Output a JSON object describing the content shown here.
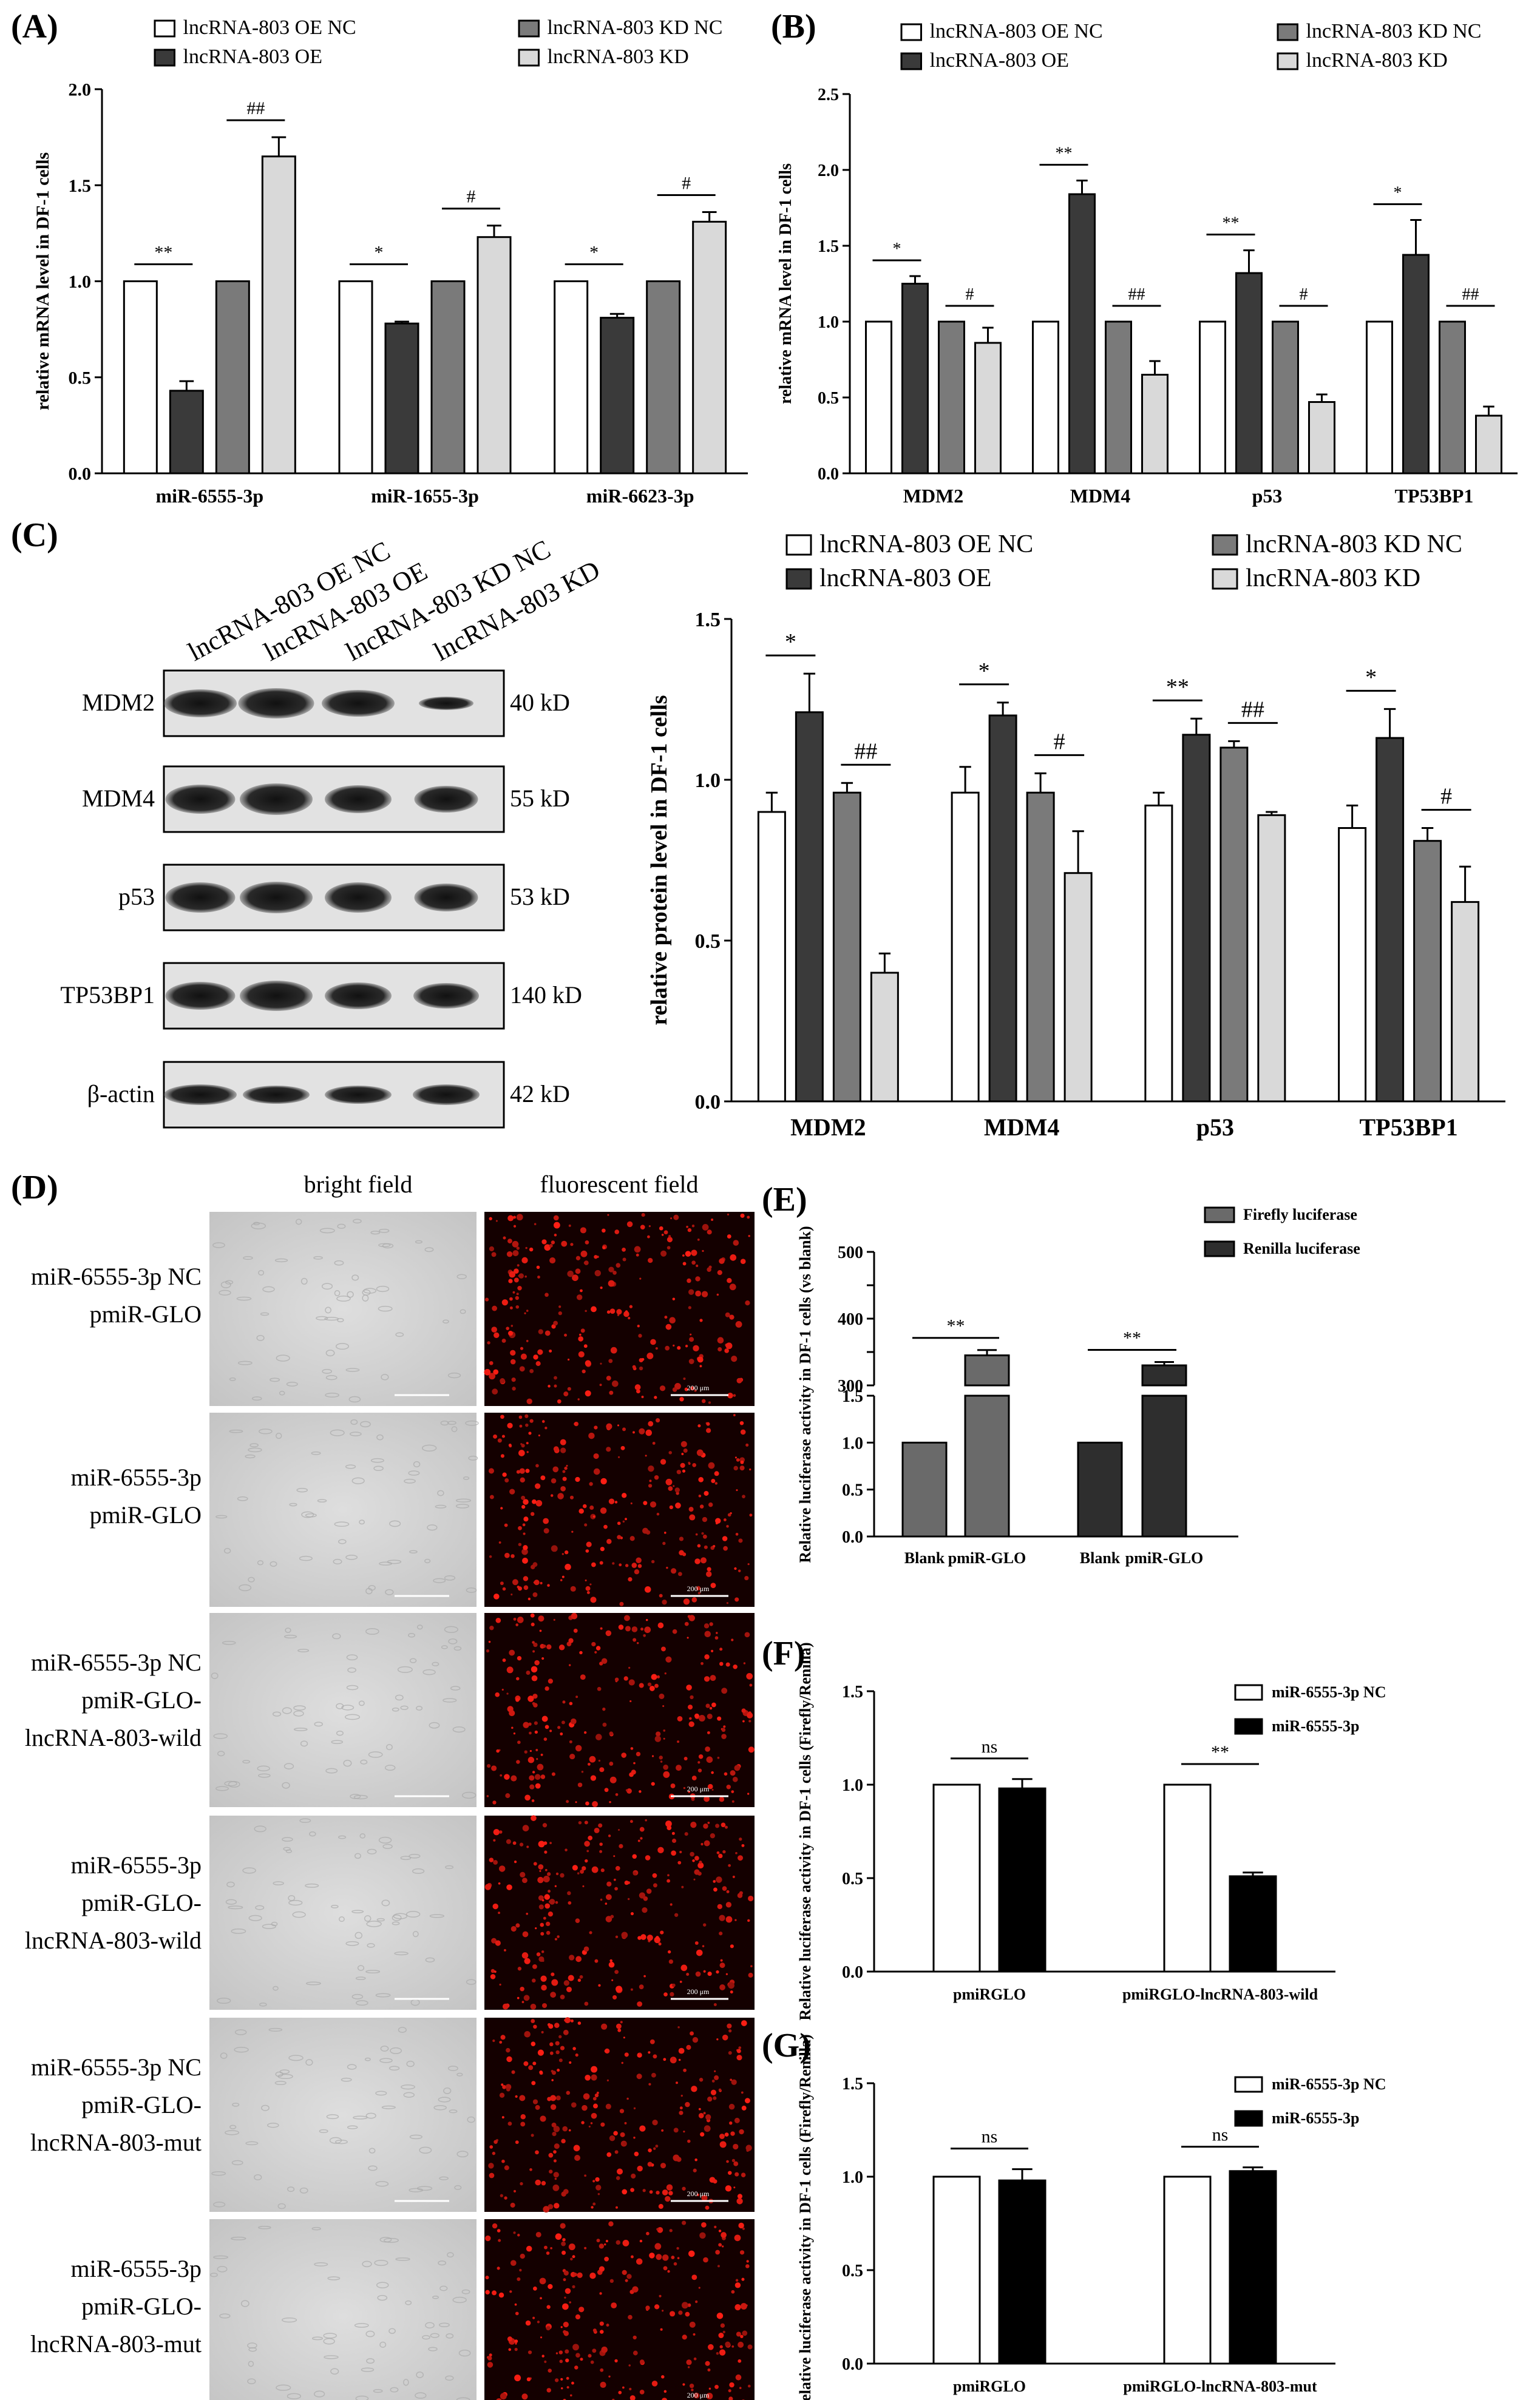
{
  "colors": {
    "white": "#ffffff",
    "oe": "#3a3a3a",
    "kdnc": "#7a7a7a",
    "kd": "#d9d9d9",
    "renilla": "#2e2e2e",
    "firefly": "#6a6a6a",
    "black": "#000000"
  },
  "panels": [
    "(A)",
    "(B)",
    "(C)",
    "(D)",
    "(E)",
    "(F)",
    "(G)"
  ],
  "legend4": [
    "lncRNA-803 OE NC",
    "lncRNA-803 OE",
    "lncRNA-803 KD NC",
    "lncRNA-803 KD"
  ],
  "chart_data": [
    {
      "id": "A",
      "type": "bar",
      "ylabel": "relative mRNA level in DF-1 cells",
      "ylim": [
        0,
        2.0
      ],
      "yticks": [
        "0.0",
        "0.5",
        "1.0",
        "1.5",
        "2.0"
      ],
      "categories": [
        "miR-6555-3p",
        "miR-1655-3p",
        "miR-6623-3p"
      ],
      "series": [
        {
          "name": "lncRNA-803 OE NC",
          "values": [
            1.0,
            1.0,
            1.0
          ],
          "err": [
            0,
            0,
            0
          ]
        },
        {
          "name": "lncRNA-803 OE",
          "values": [
            0.43,
            0.78,
            0.81
          ],
          "err": [
            0.05,
            0.01,
            0.02
          ]
        },
        {
          "name": "lncRNA-803 KD NC",
          "values": [
            1.0,
            1.0,
            1.0
          ],
          "err": [
            0,
            0,
            0
          ]
        },
        {
          "name": "lncRNA-803 KD",
          "values": [
            1.65,
            1.23,
            1.31
          ],
          "err": [
            0.1,
            0.06,
            0.05
          ]
        }
      ],
      "sig": [
        [
          "**",
          "##"
        ],
        [
          "*",
          "#"
        ],
        [
          "*",
          "#"
        ]
      ]
    },
    {
      "id": "B",
      "type": "bar",
      "ylabel": "relative mRNA level in DF-1 cells",
      "ylim": [
        0,
        2.5
      ],
      "yticks": [
        "0.0",
        "0.5",
        "1.0",
        "1.5",
        "2.0",
        "2.5"
      ],
      "categories": [
        "MDM2",
        "MDM4",
        "p53",
        "TP53BP1"
      ],
      "series": [
        {
          "name": "lncRNA-803 OE NC",
          "values": [
            1.0,
            1.0,
            1.0,
            1.0
          ],
          "err": [
            0,
            0,
            0,
            0
          ]
        },
        {
          "name": "lncRNA-803 OE",
          "values": [
            1.25,
            1.84,
            1.32,
            1.44
          ],
          "err": [
            0.05,
            0.09,
            0.15,
            0.23
          ]
        },
        {
          "name": "lncRNA-803 KD NC",
          "values": [
            1.0,
            1.0,
            1.0,
            1.0
          ],
          "err": [
            0,
            0,
            0,
            0
          ]
        },
        {
          "name": "lncRNA-803 KD",
          "values": [
            0.86,
            0.65,
            0.47,
            0.38
          ],
          "err": [
            0.1,
            0.09,
            0.05,
            0.06
          ]
        }
      ],
      "sig": [
        [
          "*",
          "#"
        ],
        [
          "**",
          "##"
        ],
        [
          "**",
          "#"
        ],
        [
          "*",
          "##"
        ]
      ]
    },
    {
      "id": "C",
      "type": "bar",
      "ylabel": "relative protein level in DF-1 cells",
      "ylim": [
        0,
        1.5
      ],
      "yticks": [
        "0.0",
        "0.5",
        "1.0",
        "1.5"
      ],
      "categories": [
        "MDM2",
        "MDM4",
        "p53",
        "TP53BP1"
      ],
      "series": [
        {
          "name": "lncRNA-803 OE NC",
          "values": [
            0.9,
            0.96,
            0.92,
            0.85
          ],
          "err": [
            0.06,
            0.08,
            0.04,
            0.07
          ]
        },
        {
          "name": "lncRNA-803 OE",
          "values": [
            1.21,
            1.2,
            1.14,
            1.13
          ],
          "err": [
            0.12,
            0.04,
            0.05,
            0.09
          ]
        },
        {
          "name": "lncRNA-803 KD NC",
          "values": [
            0.96,
            0.96,
            1.1,
            0.81
          ],
          "err": [
            0.03,
            0.06,
            0.02,
            0.04
          ]
        },
        {
          "name": "lncRNA-803 KD",
          "values": [
            0.4,
            0.71,
            0.89,
            0.62
          ],
          "err": [
            0.06,
            0.13,
            0.01,
            0.11
          ]
        }
      ],
      "sig": [
        [
          "*",
          "##"
        ],
        [
          "*",
          "#"
        ],
        [
          "**",
          "##"
        ],
        [
          "*",
          "#"
        ]
      ]
    },
    {
      "id": "E",
      "type": "bar",
      "ylabel": "Relative luciferase activity in DF-1 cells (vs blank)",
      "categories": [
        "Blank",
        "pmiR-GLO",
        "Blank",
        "pmiR-GLO"
      ],
      "series": [
        {
          "name": "Firefly luciferase"
        },
        {
          "name": "Renilla luciferase"
        }
      ],
      "values": [
        1.0,
        345,
        1.0,
        330
      ],
      "err": [
        0,
        8,
        0,
        5
      ],
      "upper_ticks": [
        "300",
        "400",
        "500"
      ],
      "lower_ticks": [
        "0.0",
        "0.5",
        "1.0",
        "1.5"
      ],
      "sig": [
        "**",
        "**"
      ]
    },
    {
      "id": "F",
      "type": "bar",
      "ylabel": "Relative luciferase activity in DF-1 cells (Firefly/Renilla)",
      "ylim": [
        0,
        1.5
      ],
      "yticks": [
        "0.0",
        "0.5",
        "1.0",
        "1.5"
      ],
      "categories": [
        "pmiRGLO",
        "pmiRGLO-lncRNA-803-wild"
      ],
      "series": [
        {
          "name": "miR-6555-3p NC",
          "values": [
            1.0,
            1.0
          ],
          "err": [
            0,
            0
          ]
        },
        {
          "name": "miR-6555-3p",
          "values": [
            0.98,
            0.51
          ],
          "err": [
            0.05,
            0.02
          ]
        }
      ],
      "sig": [
        "ns",
        "**"
      ]
    },
    {
      "id": "G",
      "type": "bar",
      "ylabel": "Relative luciferase activity in DF-1 cells (Firefly/Renilla)",
      "ylim": [
        0,
        1.5
      ],
      "yticks": [
        "0.0",
        "0.5",
        "1.0",
        "1.5"
      ],
      "categories": [
        "pmiRGLO",
        "pmiRGLO-lncRNA-803-mut"
      ],
      "series": [
        {
          "name": "miR-6555-3p NC",
          "values": [
            1.0,
            1.0
          ],
          "err": [
            0,
            0
          ]
        },
        {
          "name": "miR-6555-3p",
          "values": [
            0.98,
            1.03
          ],
          "err": [
            0.06,
            0.02
          ]
        }
      ],
      "sig": [
        "ns",
        "ns"
      ]
    }
  ],
  "western": {
    "lanes": [
      "lncRNA-803 OE NC",
      "lncRNA-803 OE",
      "lncRNA-803 KD NC",
      "lncRNA-803 KD"
    ],
    "proteins": [
      {
        "name": "MDM2",
        "kd": "40 kD"
      },
      {
        "name": "MDM4",
        "kd": "55 kD"
      },
      {
        "name": "p53",
        "kd": "53 kD"
      },
      {
        "name": "TP53BP1",
        "kd": "140 kD"
      },
      {
        "name": "β-actin",
        "kd": "42 kD"
      }
    ]
  },
  "microscopy": {
    "headers": [
      "bright field",
      "fluorescent field"
    ],
    "scale": "200 μm",
    "rows": [
      [
        "miR-6555-3p NC",
        "pmiR-GLO"
      ],
      [
        "miR-6555-3p",
        "pmiR-GLO"
      ],
      [
        "miR-6555-3p NC",
        "pmiR-GLO-",
        "lncRNA-803-wild"
      ],
      [
        "miR-6555-3p",
        "pmiR-GLO-",
        "lncRNA-803-wild"
      ],
      [
        "miR-6555-3p NC",
        "pmiR-GLO-",
        "lncRNA-803-mut"
      ],
      [
        "miR-6555-3p",
        "pmiR-GLO-",
        "lncRNA-803-mut"
      ]
    ]
  }
}
